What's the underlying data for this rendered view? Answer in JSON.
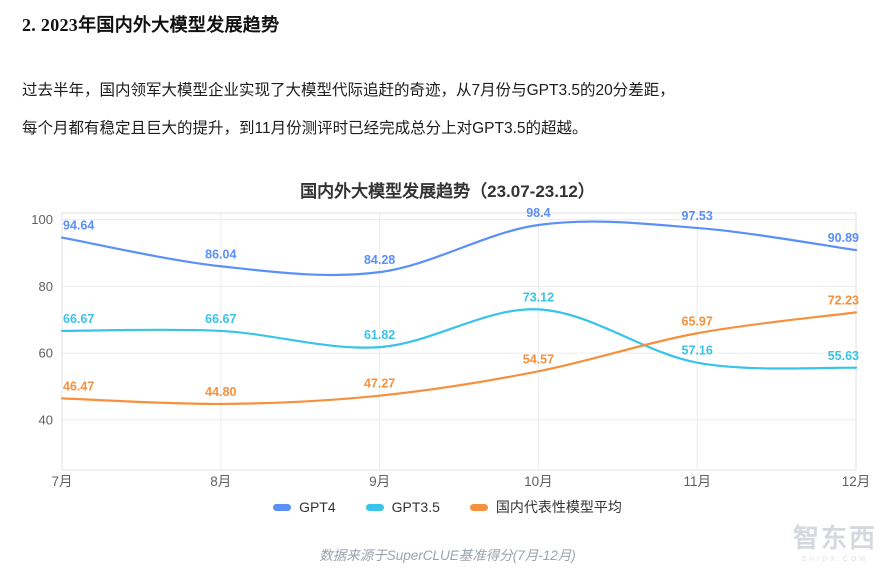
{
  "doc": {
    "heading": "2. 2023年国内外大模型发展趋势",
    "paragraph": "过去半年，国内领军大模型企业实现了大模型代际追赶的奇迹，从7月份与GPT3.5的20分差距，每个月都有稳定且巨大的提升，到11月份测评时已经完成总分上对GPT3.5的超越。",
    "source_note": "数据来源于SuperCLUE基准得分(7月-12月)",
    "watermark": "智东西",
    "watermark_sub": "ZHIDX.COM"
  },
  "chart_data": {
    "type": "line",
    "title": "国内外大模型发展趋势（23.07-23.12）",
    "categories": [
      "7月",
      "8月",
      "9月",
      "10月",
      "11月",
      "12月"
    ],
    "y_ticks": [
      40,
      60,
      80,
      100
    ],
    "ylim": [
      25,
      102
    ],
    "grid": true,
    "legend_position": "bottom",
    "series": [
      {
        "name": "GPT4",
        "color": "#5b8ff9",
        "values": [
          94.64,
          86.04,
          84.28,
          98.4,
          97.53,
          90.89
        ],
        "labels": [
          "94.64",
          "86.04",
          "84.28",
          "98.4",
          "97.53",
          "90.89"
        ]
      },
      {
        "name": "GPT3.5",
        "color": "#38c3e8",
        "values": [
          66.67,
          66.67,
          61.82,
          73.12,
          57.16,
          55.63
        ],
        "labels": [
          "66.67",
          "66.67",
          "61.82",
          "73.12",
          "57.16",
          "55.63"
        ]
      },
      {
        "name": "国内代表性模型平均",
        "color": "#f7903d",
        "values": [
          46.47,
          44.8,
          47.27,
          54.57,
          65.97,
          72.23
        ],
        "labels": [
          "46.47",
          "44.80",
          "47.27",
          "54.57",
          "65.97",
          "72.23"
        ]
      }
    ]
  }
}
